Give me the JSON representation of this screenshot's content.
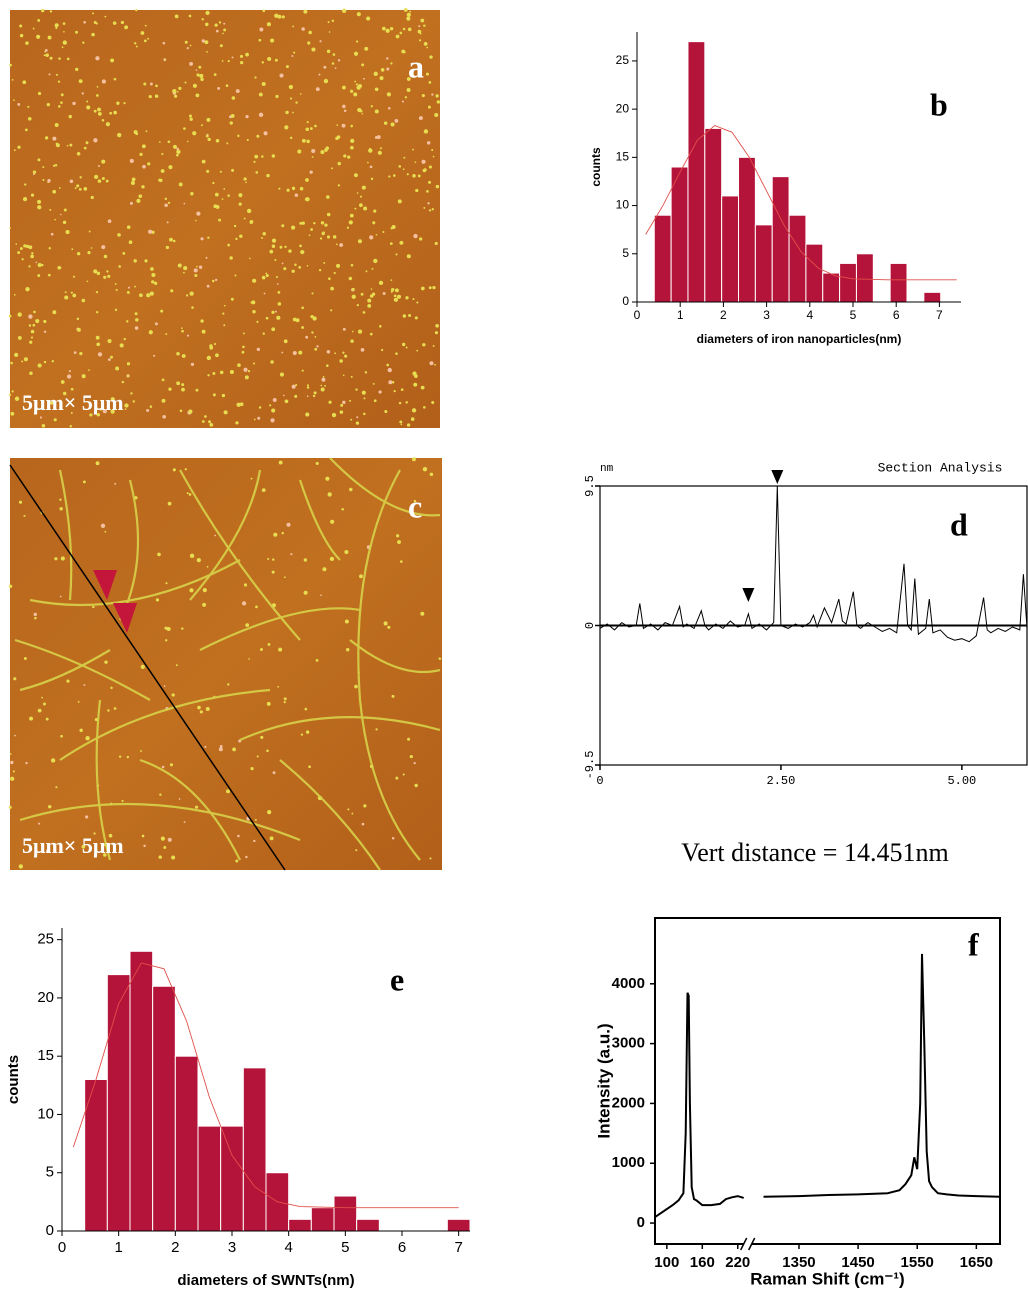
{
  "chart_data": [
    {
      "type": "image",
      "label": "a",
      "scale_label": "5μm× 5μm"
    },
    {
      "type": "histogram",
      "label": "b",
      "xlabel": "diameters of iron nanoparticles(nm)",
      "ylabel": "counts",
      "color": "#b5143a",
      "fit_color": "#e0504a",
      "bins": [
        0.4,
        0.79,
        1.18,
        1.57,
        1.96,
        2.35,
        2.74,
        3.13,
        3.52,
        3.91,
        4.3,
        4.69,
        5.08,
        5.47,
        5.86,
        6.25,
        6.64,
        7.03
      ],
      "counts": [
        9,
        14,
        27,
        18,
        11,
        15,
        8,
        13,
        9,
        6,
        3,
        4,
        5,
        0,
        4,
        0,
        1
      ],
      "fit_x": [
        0.2,
        0.6,
        1.0,
        1.4,
        1.8,
        2.2,
        2.6,
        3.0,
        3.4,
        3.8,
        4.2,
        4.6,
        5.0,
        5.8,
        7.4
      ],
      "fit_y": [
        7,
        10,
        13.5,
        16.8,
        18.3,
        17.6,
        15,
        11.5,
        8,
        5.2,
        3.5,
        2.7,
        2.4,
        2.3,
        2.3
      ],
      "xlim": [
        0,
        7.5
      ],
      "xticks": [
        0,
        1,
        2,
        3,
        4,
        5,
        6,
        7
      ],
      "ylim": [
        0,
        28
      ],
      "yticks": [
        0,
        5,
        10,
        15,
        20,
        25
      ]
    },
    {
      "type": "image",
      "label": "c",
      "scale_label": "5μm× 5μm"
    },
    {
      "type": "line",
      "label": "d",
      "title": "Section Analysis",
      "ylabel": "nm",
      "annotation": "Vert distance = 14.451nm",
      "color": "#000000",
      "x": [
        0,
        0.1,
        0.2,
        0.3,
        0.4,
        0.5,
        0.55,
        0.6,
        0.7,
        0.8,
        0.9,
        1.0,
        1.1,
        1.15,
        1.2,
        1.3,
        1.4,
        1.45,
        1.5,
        1.6,
        1.7,
        1.8,
        1.9,
        2.0,
        2.05,
        2.1,
        2.2,
        2.3,
        2.4,
        2.45,
        2.5,
        2.6,
        2.7,
        2.8,
        2.9,
        2.95,
        3.0,
        3.1,
        3.2,
        3.3,
        3.35,
        3.4,
        3.5,
        3.55,
        3.6,
        3.7,
        3.8,
        3.9,
        4.0,
        4.1,
        4.2,
        4.25,
        4.3,
        4.35,
        4.4,
        4.5,
        4.55,
        4.6,
        4.7,
        4.8,
        4.9,
        5.0,
        5.1,
        5.2,
        5.3,
        5.35,
        5.4,
        5.5,
        5.6,
        5.7,
        5.8,
        5.85,
        5.9
      ],
      "values": [
        -0.2,
        0.1,
        -0.3,
        0.2,
        -0.1,
        0.0,
        1.5,
        -0.2,
        0.1,
        -0.3,
        0.2,
        0.0,
        1.3,
        -0.1,
        0.1,
        -0.2,
        1.0,
        0.0,
        -0.3,
        0.1,
        -0.2,
        0.3,
        -0.1,
        0.0,
        0.8,
        -0.2,
        0.1,
        -0.3,
        0.2,
        9.5,
        0.0,
        -0.2,
        0.1,
        -0.1,
        0.2,
        0.7,
        -0.1,
        1.2,
        0.2,
        1.8,
        0.3,
        0.1,
        2.3,
        0.0,
        -0.2,
        0.2,
        -0.1,
        -0.4,
        -0.2,
        -0.5,
        4.2,
        0.0,
        -0.3,
        3.2,
        -0.6,
        -0.2,
        1.8,
        -0.5,
        -0.3,
        -0.8,
        -1.0,
        -0.9,
        -1.1,
        -0.7,
        1.9,
        -0.3,
        -0.5,
        -0.2,
        -0.4,
        -0.1,
        -0.3,
        3.5,
        -0.2
      ],
      "cursors": [
        2.45,
        2.05
      ],
      "xlim": [
        0,
        5.9
      ],
      "xticks": [
        0,
        {
          "value": 2.5,
          "label": "2.50"
        },
        {
          "value": 5,
          "label": "5.00"
        }
      ],
      "ylim": [
        -9.5,
        9.5
      ],
      "yticks": [
        -9.5,
        0,
        9.5
      ]
    },
    {
      "type": "histogram",
      "label": "e",
      "xlabel": "diameters of SWNTs(nm)",
      "ylabel": "counts",
      "color": "#b5143a",
      "fit_color": "#e0504a",
      "bins": [
        0.4,
        0.8,
        1.2,
        1.6,
        2.0,
        2.4,
        2.8,
        3.2,
        3.6,
        4.0,
        4.4,
        4.8,
        5.2,
        5.6,
        6.0,
        6.4,
        6.8,
        7.2
      ],
      "counts": [
        13,
        22,
        24,
        21,
        15,
        9,
        9,
        14,
        5,
        1,
        2,
        3,
        1,
        0,
        0,
        0,
        1
      ],
      "fit_x": [
        0.2,
        0.6,
        1.0,
        1.4,
        1.8,
        2.2,
        2.6,
        3.0,
        3.4,
        3.8,
        4.2,
        5.0,
        7.0
      ],
      "fit_y": [
        7.2,
        13,
        19.5,
        23,
        22.5,
        18,
        11.5,
        6.5,
        3.8,
        2.5,
        2.1,
        2,
        2
      ],
      "xlim": [
        0,
        7.2
      ],
      "xticks": [
        0,
        1,
        2,
        3,
        4,
        5,
        6,
        7
      ],
      "ylim": [
        0,
        26
      ],
      "yticks": [
        0,
        5,
        10,
        15,
        20,
        25
      ]
    },
    {
      "type": "line",
      "label": "f",
      "xlabel": "Raman Shift (cm⁻¹)",
      "ylabel": "Intensity (a.u.)",
      "color": "#000000",
      "x": [
        80,
        95,
        110,
        120,
        128,
        132,
        135,
        137,
        139,
        142,
        146,
        150,
        160,
        175,
        190,
        200,
        210,
        220,
        230,
        null,
        1290,
        1350,
        1400,
        1450,
        1500,
        1520,
        1530,
        1540,
        1545,
        1550,
        1555,
        1558,
        1562,
        1566,
        1570,
        1575,
        1585,
        1600,
        1620,
        1650,
        1690
      ],
      "values": [
        100,
        200,
        300,
        380,
        500,
        1500,
        3850,
        3800,
        2000,
        600,
        400,
        380,
        300,
        300,
        320,
        400,
        430,
        450,
        420,
        null,
        440,
        450,
        470,
        480,
        500,
        550,
        650,
        800,
        1100,
        900,
        2000,
        4500,
        3000,
        1200,
        700,
        600,
        500,
        480,
        460,
        450,
        440
      ],
      "x_break": [
        230,
        1270
      ],
      "xlim": [
        80,
        1690
      ],
      "xticks": [
        100,
        160,
        220,
        1350,
        1450,
        1550,
        1650
      ],
      "ylim": [
        -350,
        5100
      ],
      "yticks": [
        0,
        1000,
        2000,
        3000,
        4000
      ]
    }
  ]
}
